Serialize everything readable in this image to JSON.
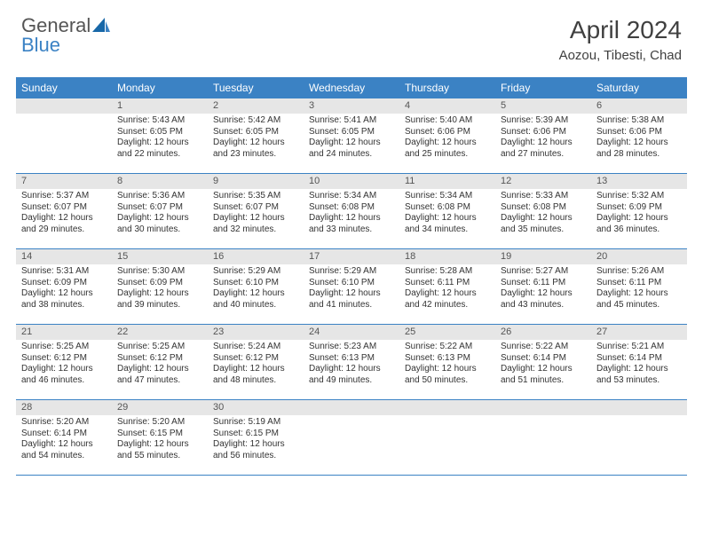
{
  "logo": {
    "text1": "General",
    "text2": "Blue"
  },
  "title": "April 2024",
  "location": "Aozou, Tibesti, Chad",
  "colors": {
    "header_bg": "#3b82c4",
    "header_text": "#ffffff",
    "daynum_bg": "#e6e6e6",
    "border": "#3b82c4",
    "body_text": "#333333"
  },
  "day_headers": [
    "Sunday",
    "Monday",
    "Tuesday",
    "Wednesday",
    "Thursday",
    "Friday",
    "Saturday"
  ],
  "weeks": [
    [
      {
        "num": "",
        "sunrise": "",
        "sunset": "",
        "daylight": ""
      },
      {
        "num": "1",
        "sunrise": "Sunrise: 5:43 AM",
        "sunset": "Sunset: 6:05 PM",
        "daylight": "Daylight: 12 hours and 22 minutes."
      },
      {
        "num": "2",
        "sunrise": "Sunrise: 5:42 AM",
        "sunset": "Sunset: 6:05 PM",
        "daylight": "Daylight: 12 hours and 23 minutes."
      },
      {
        "num": "3",
        "sunrise": "Sunrise: 5:41 AM",
        "sunset": "Sunset: 6:05 PM",
        "daylight": "Daylight: 12 hours and 24 minutes."
      },
      {
        "num": "4",
        "sunrise": "Sunrise: 5:40 AM",
        "sunset": "Sunset: 6:06 PM",
        "daylight": "Daylight: 12 hours and 25 minutes."
      },
      {
        "num": "5",
        "sunrise": "Sunrise: 5:39 AM",
        "sunset": "Sunset: 6:06 PM",
        "daylight": "Daylight: 12 hours and 27 minutes."
      },
      {
        "num": "6",
        "sunrise": "Sunrise: 5:38 AM",
        "sunset": "Sunset: 6:06 PM",
        "daylight": "Daylight: 12 hours and 28 minutes."
      }
    ],
    [
      {
        "num": "7",
        "sunrise": "Sunrise: 5:37 AM",
        "sunset": "Sunset: 6:07 PM",
        "daylight": "Daylight: 12 hours and 29 minutes."
      },
      {
        "num": "8",
        "sunrise": "Sunrise: 5:36 AM",
        "sunset": "Sunset: 6:07 PM",
        "daylight": "Daylight: 12 hours and 30 minutes."
      },
      {
        "num": "9",
        "sunrise": "Sunrise: 5:35 AM",
        "sunset": "Sunset: 6:07 PM",
        "daylight": "Daylight: 12 hours and 32 minutes."
      },
      {
        "num": "10",
        "sunrise": "Sunrise: 5:34 AM",
        "sunset": "Sunset: 6:08 PM",
        "daylight": "Daylight: 12 hours and 33 minutes."
      },
      {
        "num": "11",
        "sunrise": "Sunrise: 5:34 AM",
        "sunset": "Sunset: 6:08 PM",
        "daylight": "Daylight: 12 hours and 34 minutes."
      },
      {
        "num": "12",
        "sunrise": "Sunrise: 5:33 AM",
        "sunset": "Sunset: 6:08 PM",
        "daylight": "Daylight: 12 hours and 35 minutes."
      },
      {
        "num": "13",
        "sunrise": "Sunrise: 5:32 AM",
        "sunset": "Sunset: 6:09 PM",
        "daylight": "Daylight: 12 hours and 36 minutes."
      }
    ],
    [
      {
        "num": "14",
        "sunrise": "Sunrise: 5:31 AM",
        "sunset": "Sunset: 6:09 PM",
        "daylight": "Daylight: 12 hours and 38 minutes."
      },
      {
        "num": "15",
        "sunrise": "Sunrise: 5:30 AM",
        "sunset": "Sunset: 6:09 PM",
        "daylight": "Daylight: 12 hours and 39 minutes."
      },
      {
        "num": "16",
        "sunrise": "Sunrise: 5:29 AM",
        "sunset": "Sunset: 6:10 PM",
        "daylight": "Daylight: 12 hours and 40 minutes."
      },
      {
        "num": "17",
        "sunrise": "Sunrise: 5:29 AM",
        "sunset": "Sunset: 6:10 PM",
        "daylight": "Daylight: 12 hours and 41 minutes."
      },
      {
        "num": "18",
        "sunrise": "Sunrise: 5:28 AM",
        "sunset": "Sunset: 6:11 PM",
        "daylight": "Daylight: 12 hours and 42 minutes."
      },
      {
        "num": "19",
        "sunrise": "Sunrise: 5:27 AM",
        "sunset": "Sunset: 6:11 PM",
        "daylight": "Daylight: 12 hours and 43 minutes."
      },
      {
        "num": "20",
        "sunrise": "Sunrise: 5:26 AM",
        "sunset": "Sunset: 6:11 PM",
        "daylight": "Daylight: 12 hours and 45 minutes."
      }
    ],
    [
      {
        "num": "21",
        "sunrise": "Sunrise: 5:25 AM",
        "sunset": "Sunset: 6:12 PM",
        "daylight": "Daylight: 12 hours and 46 minutes."
      },
      {
        "num": "22",
        "sunrise": "Sunrise: 5:25 AM",
        "sunset": "Sunset: 6:12 PM",
        "daylight": "Daylight: 12 hours and 47 minutes."
      },
      {
        "num": "23",
        "sunrise": "Sunrise: 5:24 AM",
        "sunset": "Sunset: 6:12 PM",
        "daylight": "Daylight: 12 hours and 48 minutes."
      },
      {
        "num": "24",
        "sunrise": "Sunrise: 5:23 AM",
        "sunset": "Sunset: 6:13 PM",
        "daylight": "Daylight: 12 hours and 49 minutes."
      },
      {
        "num": "25",
        "sunrise": "Sunrise: 5:22 AM",
        "sunset": "Sunset: 6:13 PM",
        "daylight": "Daylight: 12 hours and 50 minutes."
      },
      {
        "num": "26",
        "sunrise": "Sunrise: 5:22 AM",
        "sunset": "Sunset: 6:14 PM",
        "daylight": "Daylight: 12 hours and 51 minutes."
      },
      {
        "num": "27",
        "sunrise": "Sunrise: 5:21 AM",
        "sunset": "Sunset: 6:14 PM",
        "daylight": "Daylight: 12 hours and 53 minutes."
      }
    ],
    [
      {
        "num": "28",
        "sunrise": "Sunrise: 5:20 AM",
        "sunset": "Sunset: 6:14 PM",
        "daylight": "Daylight: 12 hours and 54 minutes."
      },
      {
        "num": "29",
        "sunrise": "Sunrise: 5:20 AM",
        "sunset": "Sunset: 6:15 PM",
        "daylight": "Daylight: 12 hours and 55 minutes."
      },
      {
        "num": "30",
        "sunrise": "Sunrise: 5:19 AM",
        "sunset": "Sunset: 6:15 PM",
        "daylight": "Daylight: 12 hours and 56 minutes."
      },
      {
        "num": "",
        "sunrise": "",
        "sunset": "",
        "daylight": ""
      },
      {
        "num": "",
        "sunrise": "",
        "sunset": "",
        "daylight": ""
      },
      {
        "num": "",
        "sunrise": "",
        "sunset": "",
        "daylight": ""
      },
      {
        "num": "",
        "sunrise": "",
        "sunset": "",
        "daylight": ""
      }
    ]
  ]
}
